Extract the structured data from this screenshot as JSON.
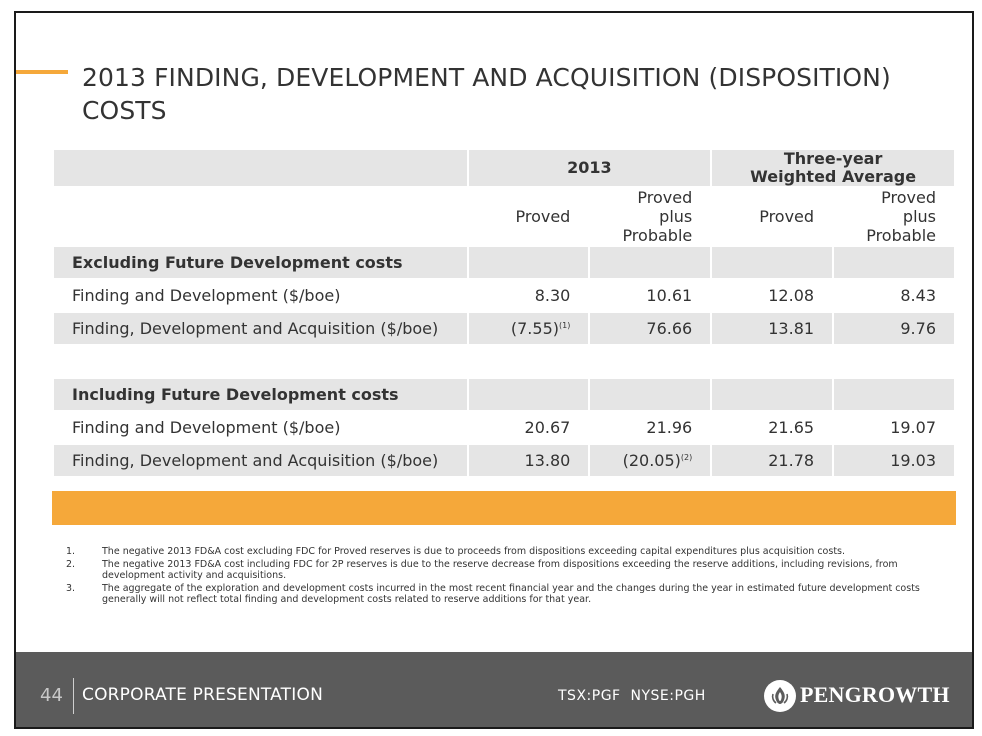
{
  "slide": {
    "title": "2013 FINDING, DEVELOPMENT AND ACQUISITION (DISPOSITION) COSTS"
  },
  "table": {
    "header": {
      "col_2013": "2013",
      "col_three_year": "Three-year Weighted Average"
    },
    "subheader": [
      "Proved",
      "Proved plus Probable",
      "Proved",
      "Proved plus Probable"
    ],
    "excluding": {
      "title": "Excluding Future Development costs",
      "rows": [
        {
          "label": "Finding and Development ($/boe)",
          "v1": "8.30",
          "v1_sup": "",
          "v2": "10.61",
          "v2_sup": "",
          "v3": "12.08",
          "v4": "8.43"
        },
        {
          "label": "Finding, Development and Acquisition ($/boe)",
          "v1": "(7.55)",
          "v1_sup": "(1)",
          "v2": "76.66",
          "v2_sup": "",
          "v3": "13.81",
          "v4": "9.76"
        }
      ]
    },
    "including": {
      "title": "Including Future Development costs",
      "rows": [
        {
          "label": "Finding and Development ($/boe)",
          "v1": "20.67",
          "v1_sup": "",
          "v2": "21.96",
          "v2_sup": "",
          "v3": "21.65",
          "v4": "19.07"
        },
        {
          "label": "Finding, Development and Acquisition ($/boe)",
          "v1": "13.80",
          "v1_sup": "",
          "v2": "(20.05)",
          "v2_sup": "(2)",
          "v3": "21.78",
          "v4": "19.03"
        }
      ]
    }
  },
  "notes": [
    {
      "n": "1.",
      "text": "The negative 2013 FD&A cost excluding FDC for Proved reserves is due to proceeds from dispositions exceeding capital expenditures plus acquisition costs."
    },
    {
      "n": "2.",
      "text": "The negative 2013 FD&A cost including FDC for 2P reserves is due to the reserve decrease from dispositions exceeding the reserve additions, including revisions, from development activity and acquisitions."
    },
    {
      "n": "3.",
      "text": "The aggregate of the exploration and development costs incurred in the most recent financial year and the changes during the year in estimated future development costs generally will not reflect total finding and development costs related to reserve additions for that year."
    }
  ],
  "footer": {
    "page_number": "44",
    "title": "CORPORATE PRESENTATION",
    "tickers": "TSX:PGF  NYSE:PGH",
    "logo_text": "PENGROWTH",
    "logo_icon": "pengrowth-flame-icon"
  },
  "colors": {
    "accent": "#f5a83a",
    "table_shade": "#e5e5e5",
    "footer_bg": "#5b5b5b",
    "text": "#333333"
  }
}
